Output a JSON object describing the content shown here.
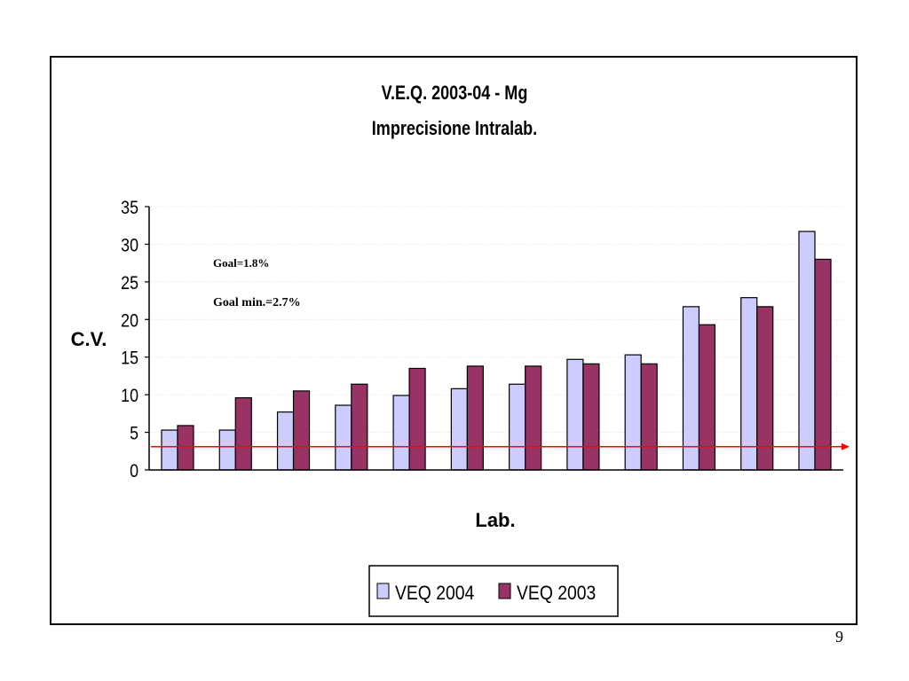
{
  "page": {
    "number": "9"
  },
  "chart_data": {
    "type": "bar",
    "title": "V.E.Q. 2003-04 - Mg",
    "subtitle": "Imprecisione Intralab.",
    "xlabel": "Lab.",
    "ylabel": "C.V.",
    "ylim": [
      0,
      35
    ],
    "yticks": [
      0,
      5,
      10,
      15,
      20,
      25,
      30,
      35
    ],
    "categories": [
      "",
      "",
      "",
      "",
      "",
      "",
      "",
      "",
      "",
      "",
      "",
      ""
    ],
    "grid": true,
    "legend_position": "bottom",
    "series": [
      {
        "name": "VEQ 2004",
        "color": "#ccccff",
        "values": [
          5.3,
          5.3,
          7.7,
          8.6,
          9.9,
          10.8,
          11.4,
          14.7,
          15.3,
          21.7,
          22.9,
          31.7
        ]
      },
      {
        "name": "VEQ 2003",
        "color": "#993366",
        "values": [
          5.9,
          9.6,
          10.5,
          11.4,
          13.5,
          13.8,
          13.8,
          14.1,
          14.1,
          19.3,
          21.7,
          28.0
        ]
      }
    ],
    "reference_line": {
      "value": 3.1,
      "color": "#ff0000"
    },
    "annotations": [
      "Goal=1.8%",
      "Goal min.=2.7%"
    ]
  }
}
